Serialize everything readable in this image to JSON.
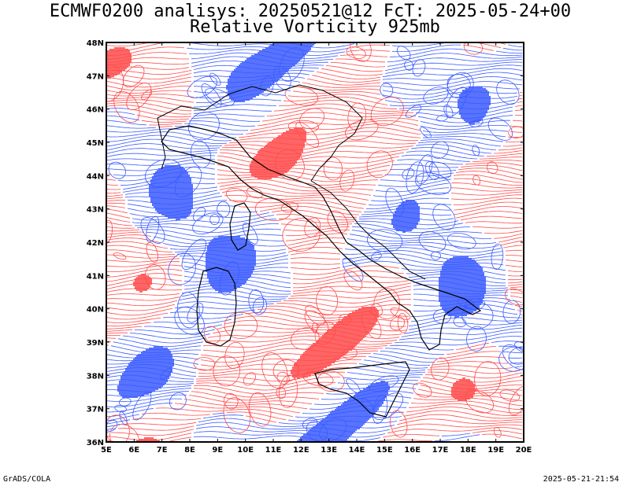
{
  "title": {
    "line1": "ECMWF0200 analisys: 20250521@12 FcT: 2025-05-24+00",
    "line2": "Relative Vorticity 925mb"
  },
  "footer": {
    "left": "GrADS/COLA",
    "right": "2025-05-21-21:54"
  },
  "map": {
    "lon_range": [
      5,
      20
    ],
    "lat_range": [
      36,
      48
    ],
    "lon_ticks": [
      "5E",
      "6E",
      "7E",
      "8E",
      "9E",
      "10E",
      "11E",
      "12E",
      "13E",
      "14E",
      "15E",
      "16E",
      "17E",
      "18E",
      "19E",
      "20E"
    ],
    "lat_ticks": [
      "36N",
      "37N",
      "38N",
      "39N",
      "40N",
      "41N",
      "42N",
      "43N",
      "44N",
      "45N",
      "46N",
      "47N",
      "48N"
    ],
    "colors": {
      "positive": "#ff4a4a",
      "negative": "#3a5bff",
      "coast": "#000000"
    }
  }
}
